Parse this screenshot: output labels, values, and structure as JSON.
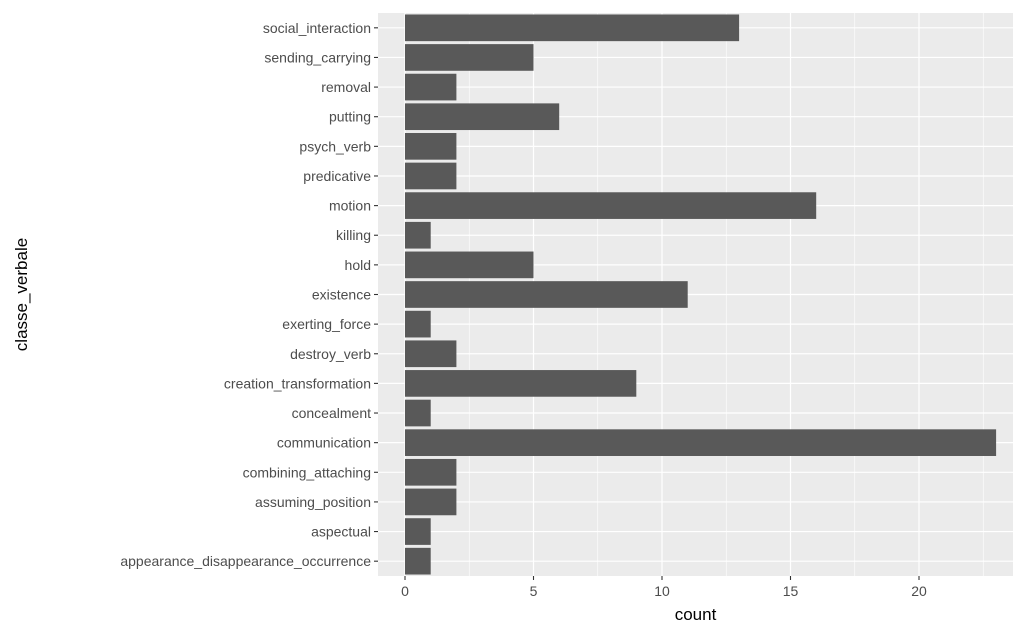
{
  "chart_data": {
    "type": "bar",
    "orientation": "horizontal",
    "xlabel": "count",
    "ylabel": "classe_verbale",
    "xlim": [
      0,
      23
    ],
    "x_ticks": [
      0,
      5,
      10,
      15,
      20
    ],
    "grid": true,
    "categories": [
      "appearance_disappearance_occurrence",
      "aspectual",
      "assuming_position",
      "combining_attaching",
      "communication",
      "concealment",
      "creation_transformation",
      "destroy_verb",
      "exerting_force",
      "existence",
      "hold",
      "killing",
      "motion",
      "predicative",
      "psych_verb",
      "putting",
      "removal",
      "sending_carrying",
      "social_interaction"
    ],
    "values": [
      1,
      1,
      2,
      2,
      23,
      1,
      9,
      2,
      1,
      11,
      5,
      1,
      16,
      2,
      2,
      6,
      2,
      5,
      13
    ],
    "colors": {
      "panel_background": "#ebebeb",
      "grid_major": "#ffffff",
      "bar_fill": "#595959",
      "tick_color": "#333333",
      "text_color": "#4d4d4d"
    }
  }
}
